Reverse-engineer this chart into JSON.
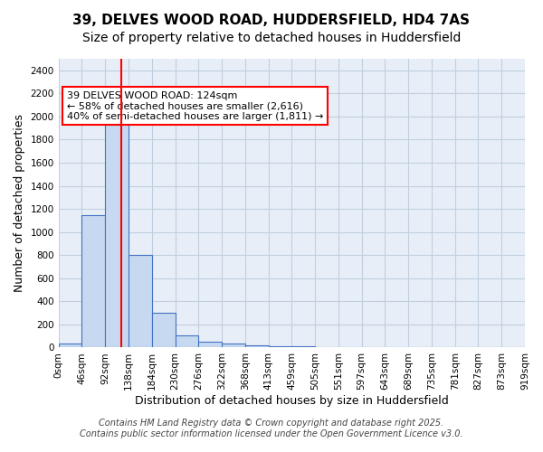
{
  "title_line1": "39, DELVES WOOD ROAD, HUDDERSFIELD, HD4 7AS",
  "title_line2": "Size of property relative to detached houses in Huddersfield",
  "xlabel": "Distribution of detached houses by size in Huddersfield",
  "ylabel": "Number of detached properties",
  "bar_values": [
    35,
    1150,
    2050,
    800,
    300,
    105,
    50,
    35,
    20,
    15,
    10,
    0,
    0,
    0,
    0,
    0,
    0,
    0,
    0,
    0
  ],
  "bin_labels": [
    "0sqm",
    "46sqm",
    "92sqm",
    "138sqm",
    "184sqm",
    "230sqm",
    "276sqm",
    "322sqm",
    "368sqm",
    "413sqm",
    "459sqm",
    "505sqm",
    "551sqm",
    "597sqm",
    "643sqm",
    "689sqm",
    "735sqm",
    "781sqm",
    "827sqm",
    "873sqm",
    "919sqm"
  ],
  "bar_color": "#c6d9f0",
  "bar_edge_color": "#4472c4",
  "property_value": 124,
  "red_line_x": 2,
  "annotation_text": "39 DELVES WOOD ROAD: 124sqm\n← 58% of detached houses are smaller (2,616)\n40% of semi-detached houses are larger (1,811) →",
  "annotation_box_color": "white",
  "annotation_box_edge_color": "red",
  "ylim": [
    0,
    2500
  ],
  "yticks": [
    0,
    200,
    400,
    600,
    800,
    1000,
    1200,
    1400,
    1600,
    1800,
    2000,
    2200,
    2400
  ],
  "grid_color": "#c0cfe0",
  "background_color": "#e8eef7",
  "footer_line1": "Contains HM Land Registry data © Crown copyright and database right 2025.",
  "footer_line2": "Contains public sector information licensed under the Open Government Licence v3.0.",
  "red_line_color": "red",
  "title_fontsize": 11,
  "subtitle_fontsize": 10,
  "axis_label_fontsize": 9,
  "tick_fontsize": 7.5,
  "annotation_fontsize": 8,
  "footer_fontsize": 7
}
